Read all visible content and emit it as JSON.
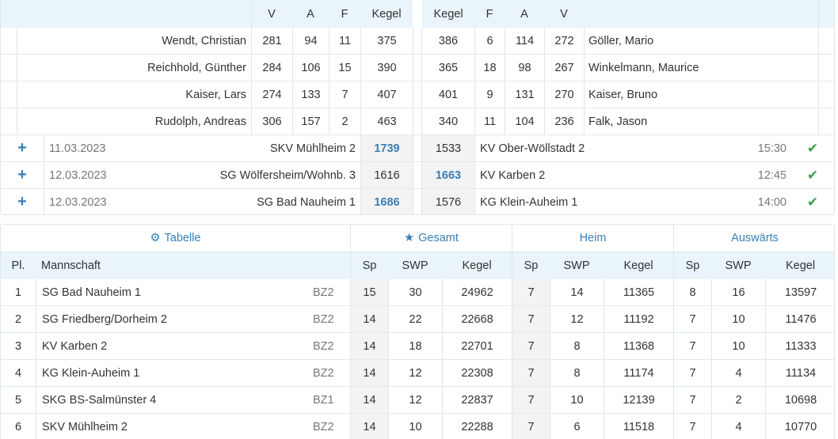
{
  "match_header": {
    "left": [
      "V",
      "A",
      "F",
      "Kegel"
    ],
    "right": [
      "Kegel",
      "F",
      "A",
      "V"
    ]
  },
  "players": [
    {
      "home_name": "Wendt, Christian",
      "home_v": "281",
      "home_a": "94",
      "home_f": "11",
      "home_kegel": "375",
      "away_kegel": "386",
      "away_f": "6",
      "away_a": "114",
      "away_v": "272",
      "away_name": "Göller, Mario"
    },
    {
      "home_name": "Reichhold, Günther",
      "home_v": "284",
      "home_a": "106",
      "home_f": "15",
      "home_kegel": "390",
      "away_kegel": "365",
      "away_f": "18",
      "away_a": "98",
      "away_v": "267",
      "away_name": "Winkelmann, Maurice"
    },
    {
      "home_name": "Kaiser, Lars",
      "home_v": "274",
      "home_a": "133",
      "home_f": "7",
      "home_kegel": "407",
      "away_kegel": "401",
      "away_f": "9",
      "away_a": "131",
      "away_v": "270",
      "away_name": "Kaiser, Bruno"
    },
    {
      "home_name": "Rudolph, Andreas",
      "home_v": "306",
      "home_a": "157",
      "home_f": "2",
      "home_kegel": "463",
      "away_kegel": "340",
      "away_f": "11",
      "away_a": "104",
      "away_v": "236",
      "away_name": "Falk, Jason"
    }
  ],
  "matches": [
    {
      "date": "11.03.2023",
      "home": "SKV Mühlheim 2",
      "home_score": "1739",
      "away_score": "1533",
      "away": "KV Ober-Wöllstadt 2",
      "time": "15:30",
      "home_win": true
    },
    {
      "date": "12.03.2023",
      "home": "SG Wölfersheim/Wohnb. 3",
      "home_score": "1616",
      "away_score": "1663",
      "away": "KV Karben 2",
      "time": "12:45",
      "home_win": false
    },
    {
      "date": "12.03.2023",
      "home": "SG Bad Nauheim 1",
      "home_score": "1686",
      "away_score": "1576",
      "away": "KG Klein-Auheim 1",
      "time": "14:00",
      "home_win": true
    }
  ],
  "icons": {
    "expand": "plus-icon",
    "done": "check-icon",
    "settings": "gear-icon",
    "star": "star-icon"
  },
  "colors": {
    "accent": "#3a7fb5",
    "header_bg": "#e9f4fb",
    "success": "#3aa14a"
  },
  "table": {
    "tab_tabelle": "Tabelle",
    "tab_gesamt": "Gesamt",
    "tab_heim": "Heim",
    "tab_auswaerts": "Auswärts",
    "columns": {
      "pl": "Pl.",
      "team": "Mannschaft",
      "sp": "Sp",
      "swp": "SWP",
      "kegel": "Kegel"
    },
    "rows": [
      {
        "pl": "1",
        "team": "SG Bad Nauheim 1",
        "league": "BZ2",
        "g_sp": "15",
        "g_swp": "30",
        "g_kegel": "24962",
        "h_sp": "7",
        "h_swp": "14",
        "h_kegel": "11365",
        "a_sp": "8",
        "a_swp": "16",
        "a_kegel": "13597"
      },
      {
        "pl": "2",
        "team": "SG Friedberg/Dorheim 2",
        "league": "BZ2",
        "g_sp": "14",
        "g_swp": "22",
        "g_kegel": "22668",
        "h_sp": "7",
        "h_swp": "12",
        "h_kegel": "11192",
        "a_sp": "7",
        "a_swp": "10",
        "a_kegel": "11476"
      },
      {
        "pl": "3",
        "team": "KV Karben 2",
        "league": "BZ2",
        "g_sp": "14",
        "g_swp": "18",
        "g_kegel": "22701",
        "h_sp": "7",
        "h_swp": "8",
        "h_kegel": "11368",
        "a_sp": "7",
        "a_swp": "10",
        "a_kegel": "11333"
      },
      {
        "pl": "4",
        "team": "KG Klein-Auheim 1",
        "league": "BZ2",
        "g_sp": "14",
        "g_swp": "12",
        "g_kegel": "22308",
        "h_sp": "7",
        "h_swp": "8",
        "h_kegel": "11174",
        "a_sp": "7",
        "a_swp": "4",
        "a_kegel": "11134"
      },
      {
        "pl": "5",
        "team": "SKG BS-Salmünster 4",
        "league": "BZ1",
        "g_sp": "14",
        "g_swp": "12",
        "g_kegel": "22837",
        "h_sp": "7",
        "h_swp": "10",
        "h_kegel": "12139",
        "a_sp": "7",
        "a_swp": "2",
        "a_kegel": "10698"
      },
      {
        "pl": "6",
        "team": "SKV Mühlheim 2",
        "league": "BZ2",
        "g_sp": "14",
        "g_swp": "10",
        "g_kegel": "22288",
        "h_sp": "7",
        "h_swp": "6",
        "h_kegel": "11518",
        "a_sp": "7",
        "a_swp": "4",
        "a_kegel": "10770"
      }
    ]
  }
}
